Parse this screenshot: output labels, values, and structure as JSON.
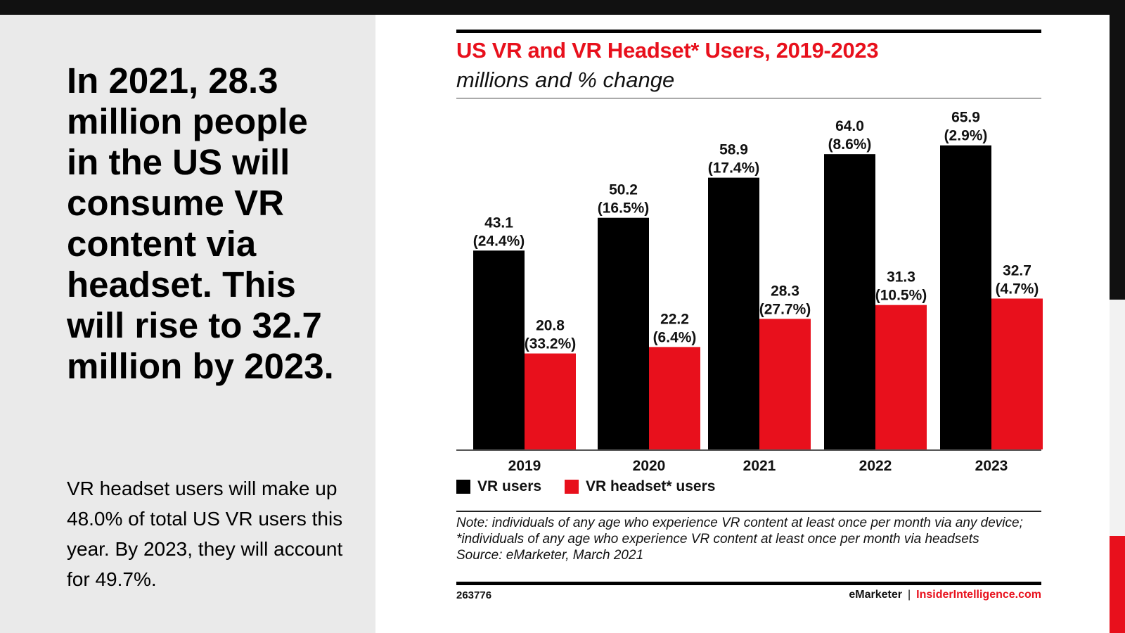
{
  "slide": {
    "headline": "In 2021, 28.3 million people in the US will consume VR content via headset. This will rise to 32.7 million by 2023.",
    "body": "VR headset users will make up 48.0% of total US VR users this year. By 2023, they will account for 49.7%."
  },
  "colors": {
    "accent_red": "#e8101c",
    "black": "#000000",
    "panel_gray": "#eaeaea"
  },
  "chart_data": {
    "type": "bar",
    "title": "US VR and VR Headset* Users, 2019-2023",
    "subtitle": "millions and % change",
    "xlabel": "",
    "ylabel": "",
    "ylim": [
      0,
      70
    ],
    "grid": false,
    "categories": [
      "2019",
      "2020",
      "2021",
      "2022",
      "2023"
    ],
    "series": [
      {
        "name": "VR users",
        "color": "#000000",
        "values": [
          43.1,
          50.2,
          58.9,
          64.0,
          65.9
        ],
        "pct_change": [
          "24.4%",
          "16.5%",
          "17.4%",
          "8.6%",
          "2.9%"
        ]
      },
      {
        "name": "VR headset* users",
        "color": "#e8101c",
        "values": [
          20.8,
          22.2,
          28.3,
          31.3,
          32.7
        ],
        "pct_change": [
          "33.2%",
          "6.4%",
          "27.7%",
          "10.5%",
          "4.7%"
        ]
      }
    ],
    "legend": {
      "placement": "bottom-left",
      "entries": [
        "VR users",
        "VR headset* users"
      ]
    },
    "note": "Note: individuals of any age who experience VR content at least once per month via any device; *individuals of any age who experience VR content at least once per month via headsets",
    "source": "Source: eMarketer, March 2021",
    "chart_id": "263776",
    "brand": "eMarketer",
    "brand_site": "InsiderIntelligence.com"
  }
}
